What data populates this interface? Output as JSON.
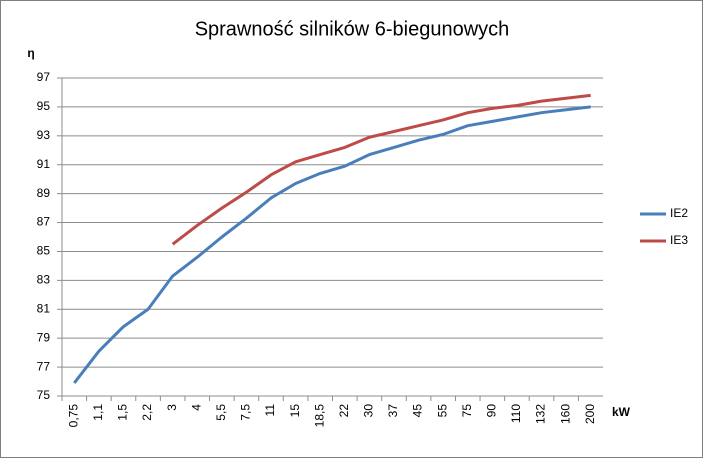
{
  "chart_data": {
    "type": "line",
    "title": "Sprawność silników 6-biegunowych",
    "y_label": "η",
    "x_label": "kW",
    "categories": [
      "0,75",
      "1,1",
      "1,5",
      "2,2",
      "3",
      "4",
      "5,5",
      "7,5",
      "11",
      "15",
      "18,5",
      "22",
      "30",
      "37",
      "45",
      "55",
      "75",
      "90",
      "110",
      "132",
      "160",
      "200"
    ],
    "series": [
      {
        "name": "IE2",
        "color": "#4a7ebb",
        "values": [
          75.9,
          78.1,
          79.8,
          81.0,
          83.3,
          84.6,
          86.0,
          87.3,
          88.7,
          89.7,
          90.4,
          90.9,
          91.7,
          92.2,
          92.7,
          93.1,
          93.7,
          94.0,
          94.3,
          94.6,
          94.8,
          95.0
        ]
      },
      {
        "name": "IE3",
        "color": "#be4b48",
        "values": [
          null,
          null,
          null,
          null,
          85.5,
          86.8,
          88.0,
          89.1,
          90.3,
          91.2,
          91.7,
          92.2,
          92.9,
          93.3,
          93.7,
          94.1,
          94.6,
          94.9,
          95.1,
          95.4,
          95.6,
          95.8
        ]
      }
    ],
    "ylim": [
      75,
      97
    ],
    "yticks": [
      75,
      77,
      79,
      81,
      83,
      85,
      87,
      89,
      91,
      93,
      95,
      97
    ],
    "grid": true,
    "legend": "right"
  }
}
